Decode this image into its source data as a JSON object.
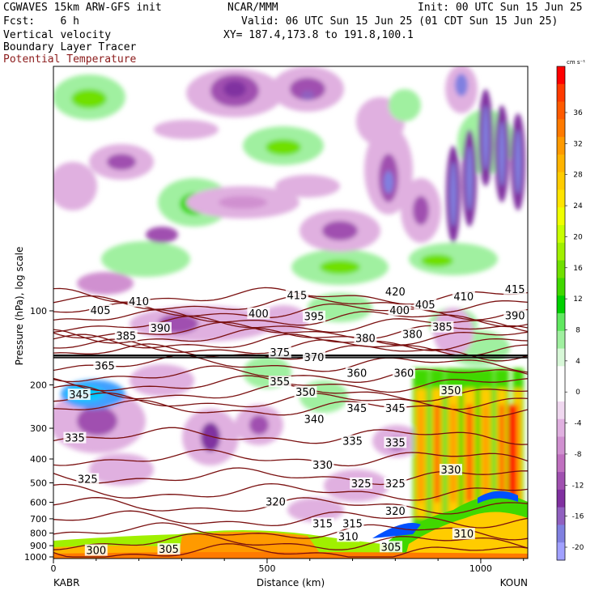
{
  "header": {
    "model": "CGWAVES 15km ARW-GFS init",
    "center": "NCAR/MMM",
    "init": "Init: 00 UTC Sun 15 Jun 25",
    "fcst": "Fcst:    6 h",
    "valid": "Valid: 06 UTC Sun 15 Jun 25 (01 CDT Sun 15 Jun 25)",
    "field1": "Vertical velocity",
    "field2": "Boundary Layer Tracer",
    "field3": "Potential Temperature",
    "xy": "XY= 187.4,173.8 to 191.8,100.1"
  },
  "chart_data": {
    "type": "heatmap",
    "title": "",
    "xlabel": "Distance (km)",
    "ylabel": "Pressure (hPa), log scale",
    "x_ticks": [
      0,
      500,
      1000
    ],
    "x_range": [
      0,
      1110
    ],
    "y_ticks": [
      100,
      200,
      300,
      400,
      500,
      600,
      700,
      800,
      900,
      1000
    ],
    "endpoints": {
      "left": "KABR",
      "right": "KOUN"
    },
    "colorbar": {
      "unit": "cm s⁻¹",
      "labels": [
        36,
        32,
        28,
        24,
        20,
        16,
        12,
        8,
        4,
        0,
        -4,
        -8,
        -12,
        -16,
        -20
      ],
      "colors": [
        "#ff0000",
        "#ff3a00",
        "#ff5a00",
        "#ff7a00",
        "#ff9a00",
        "#ffb400",
        "#ffcc00",
        "#ffe400",
        "#f0ff00",
        "#c8ff00",
        "#a0f000",
        "#70e000",
        "#40d800",
        "#00d000",
        "#60e860",
        "#a0f0a0",
        "#d8f8d8",
        "#ffffff",
        "#ffffff",
        "#f0d8f0",
        "#e0b0e0",
        "#d090d0",
        "#c070c0",
        "#a050b0",
        "#8030a0",
        "#9060c0",
        "#8080e0",
        "#a0a0ff"
      ]
    },
    "theta_labels": [
      {
        "value": 420,
        "x": 800,
        "p": 84
      },
      {
        "value": 415,
        "x": 570,
        "p": 87
      },
      {
        "value": 415,
        "x": 1080,
        "p": 82
      },
      {
        "value": 410,
        "x": 200,
        "p": 92
      },
      {
        "value": 410,
        "x": 960,
        "p": 88
      },
      {
        "value": 405,
        "x": 110,
        "p": 100
      },
      {
        "value": 405,
        "x": 870,
        "p": 95
      },
      {
        "value": 400,
        "x": 480,
        "p": 103
      },
      {
        "value": 400,
        "x": 810,
        "p": 100
      },
      {
        "value": 395,
        "x": 610,
        "p": 106
      },
      {
        "value": 390,
        "x": 250,
        "p": 118
      },
      {
        "value": 390,
        "x": 1080,
        "p": 105
      },
      {
        "value": 385,
        "x": 170,
        "p": 127
      },
      {
        "value": 385,
        "x": 910,
        "p": 117
      },
      {
        "value": 380,
        "x": 730,
        "p": 130
      },
      {
        "value": 380,
        "x": 840,
        "p": 125
      },
      {
        "value": 375,
        "x": 530,
        "p": 148
      },
      {
        "value": 370,
        "x": 610,
        "p": 155
      },
      {
        "value": 365,
        "x": 120,
        "p": 168
      },
      {
        "value": 360,
        "x": 710,
        "p": 180
      },
      {
        "value": 360,
        "x": 820,
        "p": 180
      },
      {
        "value": 355,
        "x": 530,
        "p": 195
      },
      {
        "value": 350,
        "x": 590,
        "p": 215
      },
      {
        "value": 350,
        "x": 930,
        "p": 212
      },
      {
        "value": 345,
        "x": 60,
        "p": 220
      },
      {
        "value": 345,
        "x": 710,
        "p": 250
      },
      {
        "value": 345,
        "x": 800,
        "p": 250
      },
      {
        "value": 340,
        "x": 610,
        "p": 277
      },
      {
        "value": 335,
        "x": 50,
        "p": 330
      },
      {
        "value": 335,
        "x": 700,
        "p": 340
      },
      {
        "value": 335,
        "x": 800,
        "p": 345
      },
      {
        "value": 330,
        "x": 630,
        "p": 425
      },
      {
        "value": 330,
        "x": 930,
        "p": 445
      },
      {
        "value": 325,
        "x": 80,
        "p": 485
      },
      {
        "value": 325,
        "x": 720,
        "p": 505
      },
      {
        "value": 325,
        "x": 800,
        "p": 505
      },
      {
        "value": 320,
        "x": 520,
        "p": 600
      },
      {
        "value": 320,
        "x": 800,
        "p": 655
      },
      {
        "value": 315,
        "x": 630,
        "p": 735
      },
      {
        "value": 315,
        "x": 700,
        "p": 735
      },
      {
        "value": 310,
        "x": 690,
        "p": 830
      },
      {
        "value": 310,
        "x": 960,
        "p": 810
      },
      {
        "value": 305,
        "x": 270,
        "p": 935
      },
      {
        "value": 305,
        "x": 790,
        "p": 915
      },
      {
        "value": 300,
        "x": 100,
        "p": 945
      }
    ]
  }
}
